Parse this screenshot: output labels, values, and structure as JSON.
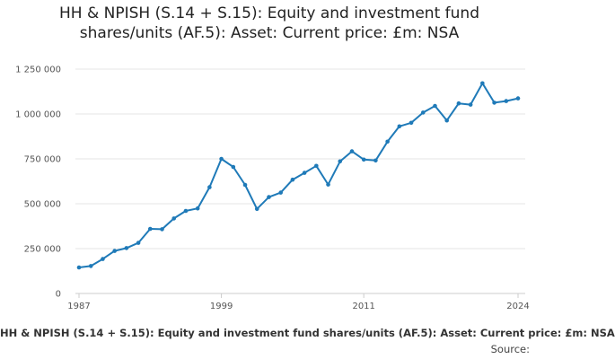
{
  "chart_data": {
    "type": "line",
    "title": "HH & NPISH (S.14 + S.15): Equity and investment fund\nshares/units (AF.5): Asset: Current price: £m: NSA",
    "series": [
      {
        "name": "HH & NPISH (S.14 + S.15): Equity and investment fund shares/units (AF.5): Asset: Current price: £m: NSA",
        "color": "#1f7ab8",
        "x": [
          1987,
          1988,
          1989,
          1990,
          1991,
          1992,
          1993,
          1994,
          1995,
          1996,
          1997,
          1998,
          1999,
          2000,
          2001,
          2002,
          2003,
          2004,
          2005,
          2006,
          2007,
          2008,
          2009,
          2010,
          2011,
          2012,
          2013,
          2014,
          2015,
          2016,
          2017,
          2018,
          2019,
          2020,
          2021,
          2022,
          2023,
          2024
        ],
        "values": [
          145000,
          153000,
          192000,
          237000,
          253000,
          282000,
          360000,
          358000,
          418000,
          460000,
          474000,
          592000,
          750000,
          705000,
          605000,
          471000,
          537000,
          562000,
          634000,
          672000,
          711000,
          607000,
          736000,
          792000,
          746000,
          741000,
          846000,
          931000,
          951000,
          1008000,
          1045000,
          964000,
          1059000,
          1052000,
          1171000,
          1063000,
          1072000,
          1087000
        ]
      }
    ],
    "ylim": [
      0,
      1300000
    ],
    "yticks": [
      0,
      250000,
      500000,
      750000,
      1000000,
      1250000
    ],
    "ytick_labels": [
      "0",
      "250 000",
      "500 000",
      "750 000",
      "1 000 000",
      "1 250 000"
    ],
    "xlim": [
      1987,
      2024
    ],
    "xticks": [
      1987,
      1999,
      2011,
      2024
    ],
    "xtick_labels": [
      "1987",
      "1999",
      "2011",
      "2024"
    ],
    "grid": true,
    "legend_position": "bottom",
    "source_label": "Source:"
  }
}
